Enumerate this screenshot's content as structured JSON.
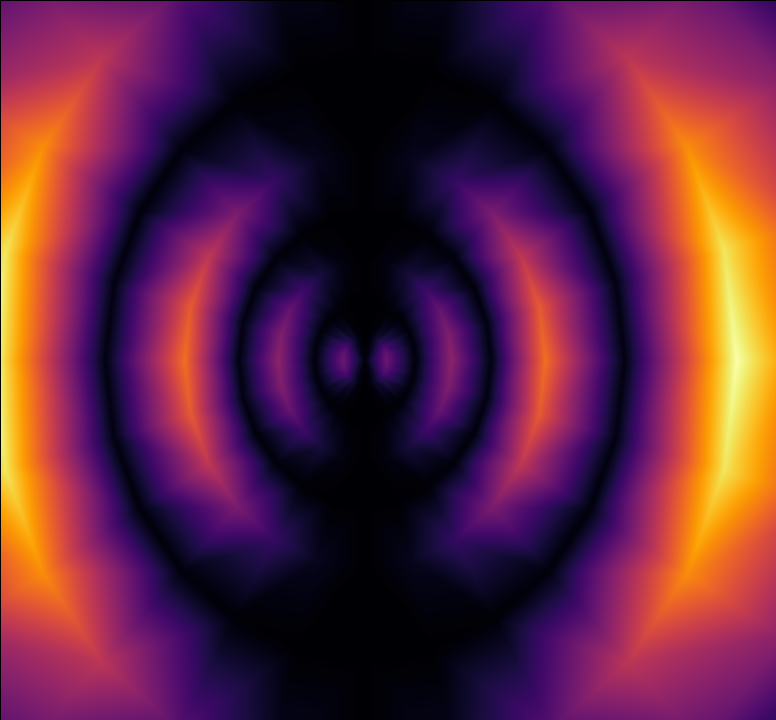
{
  "chart_data": {
    "type": "heatmap",
    "tick_labels": false,
    "color": "inferno",
    "xlim": [
      -1.01,
      1.14
    ],
    "ylim": [
      -0.87,
      0.87
    ],
    "zlim": [
      0,
      1
    ],
    "radii": [
      0,
      0.06,
      0.14,
      0.24,
      0.35,
      0.5,
      0.72,
      1.03,
      1.33,
      1.56
    ],
    "angles": [
      0,
      15,
      30,
      45,
      60,
      75,
      90,
      105,
      120,
      135,
      150,
      165,
      180,
      195,
      210,
      225,
      240,
      255,
      270,
      285,
      300,
      315,
      330,
      345
    ],
    "values": [
      [
        0.02,
        0.3,
        0.02,
        0.38,
        0.03,
        0.68,
        0.03,
        1.0,
        0.5,
        0.1
      ],
      [
        0.02,
        0.28,
        0.02,
        0.35,
        0.03,
        0.63,
        0.03,
        0.93,
        0.47,
        0.09
      ],
      [
        0.02,
        0.23,
        0.02,
        0.29,
        0.02,
        0.51,
        0.02,
        0.75,
        0.38,
        0.08
      ],
      [
        0.02,
        0.15,
        0.01,
        0.19,
        0.02,
        0.34,
        0.02,
        0.5,
        0.25,
        0.05
      ],
      [
        0.02,
        0.08,
        0.01,
        0.1,
        0.01,
        0.17,
        0.01,
        0.25,
        0.13,
        0.03
      ],
      [
        0.02,
        0.02,
        0.0,
        0.03,
        0.0,
        0.05,
        0.0,
        0.07,
        0.04,
        0.01
      ],
      [
        0.02,
        0.0,
        0.0,
        0.0,
        0.0,
        0.0,
        0.0,
        0.0,
        0.0,
        0.0
      ],
      [
        0.02,
        0.02,
        0.0,
        0.03,
        0.0,
        0.05,
        0.0,
        0.07,
        0.04,
        0.01
      ],
      [
        0.02,
        0.08,
        0.01,
        0.1,
        0.01,
        0.17,
        0.01,
        0.25,
        0.13,
        0.03
      ],
      [
        0.02,
        0.15,
        0.01,
        0.19,
        0.02,
        0.34,
        0.02,
        0.5,
        0.25,
        0.05
      ],
      [
        0.02,
        0.23,
        0.02,
        0.29,
        0.02,
        0.51,
        0.02,
        0.75,
        0.38,
        0.08
      ],
      [
        0.02,
        0.28,
        0.02,
        0.35,
        0.03,
        0.63,
        0.03,
        0.93,
        0.47,
        0.09
      ],
      [
        0.02,
        0.3,
        0.02,
        0.38,
        0.03,
        0.68,
        0.03,
        1.0,
        0.5,
        0.1
      ],
      [
        0.02,
        0.28,
        0.02,
        0.35,
        0.03,
        0.63,
        0.03,
        0.93,
        0.47,
        0.09
      ],
      [
        0.02,
        0.23,
        0.02,
        0.29,
        0.02,
        0.51,
        0.02,
        0.75,
        0.38,
        0.08
      ],
      [
        0.02,
        0.15,
        0.01,
        0.19,
        0.02,
        0.34,
        0.02,
        0.5,
        0.25,
        0.05
      ],
      [
        0.02,
        0.08,
        0.01,
        0.1,
        0.01,
        0.17,
        0.01,
        0.25,
        0.13,
        0.03
      ],
      [
        0.02,
        0.02,
        0.0,
        0.03,
        0.0,
        0.05,
        0.0,
        0.07,
        0.04,
        0.01
      ],
      [
        0.02,
        0.0,
        0.0,
        0.0,
        0.0,
        0.0,
        0.0,
        0.0,
        0.0,
        0.0
      ],
      [
        0.02,
        0.02,
        0.0,
        0.03,
        0.0,
        0.05,
        0.0,
        0.07,
        0.04,
        0.01
      ],
      [
        0.02,
        0.08,
        0.01,
        0.1,
        0.01,
        0.17,
        0.01,
        0.25,
        0.13,
        0.03
      ],
      [
        0.02,
        0.15,
        0.01,
        0.19,
        0.02,
        0.34,
        0.02,
        0.5,
        0.25,
        0.05
      ],
      [
        0.02,
        0.23,
        0.02,
        0.29,
        0.02,
        0.51,
        0.02,
        0.75,
        0.38,
        0.08
      ],
      [
        0.02,
        0.28,
        0.02,
        0.35,
        0.03,
        0.63,
        0.03,
        0.93,
        0.47,
        0.09
      ]
    ]
  }
}
